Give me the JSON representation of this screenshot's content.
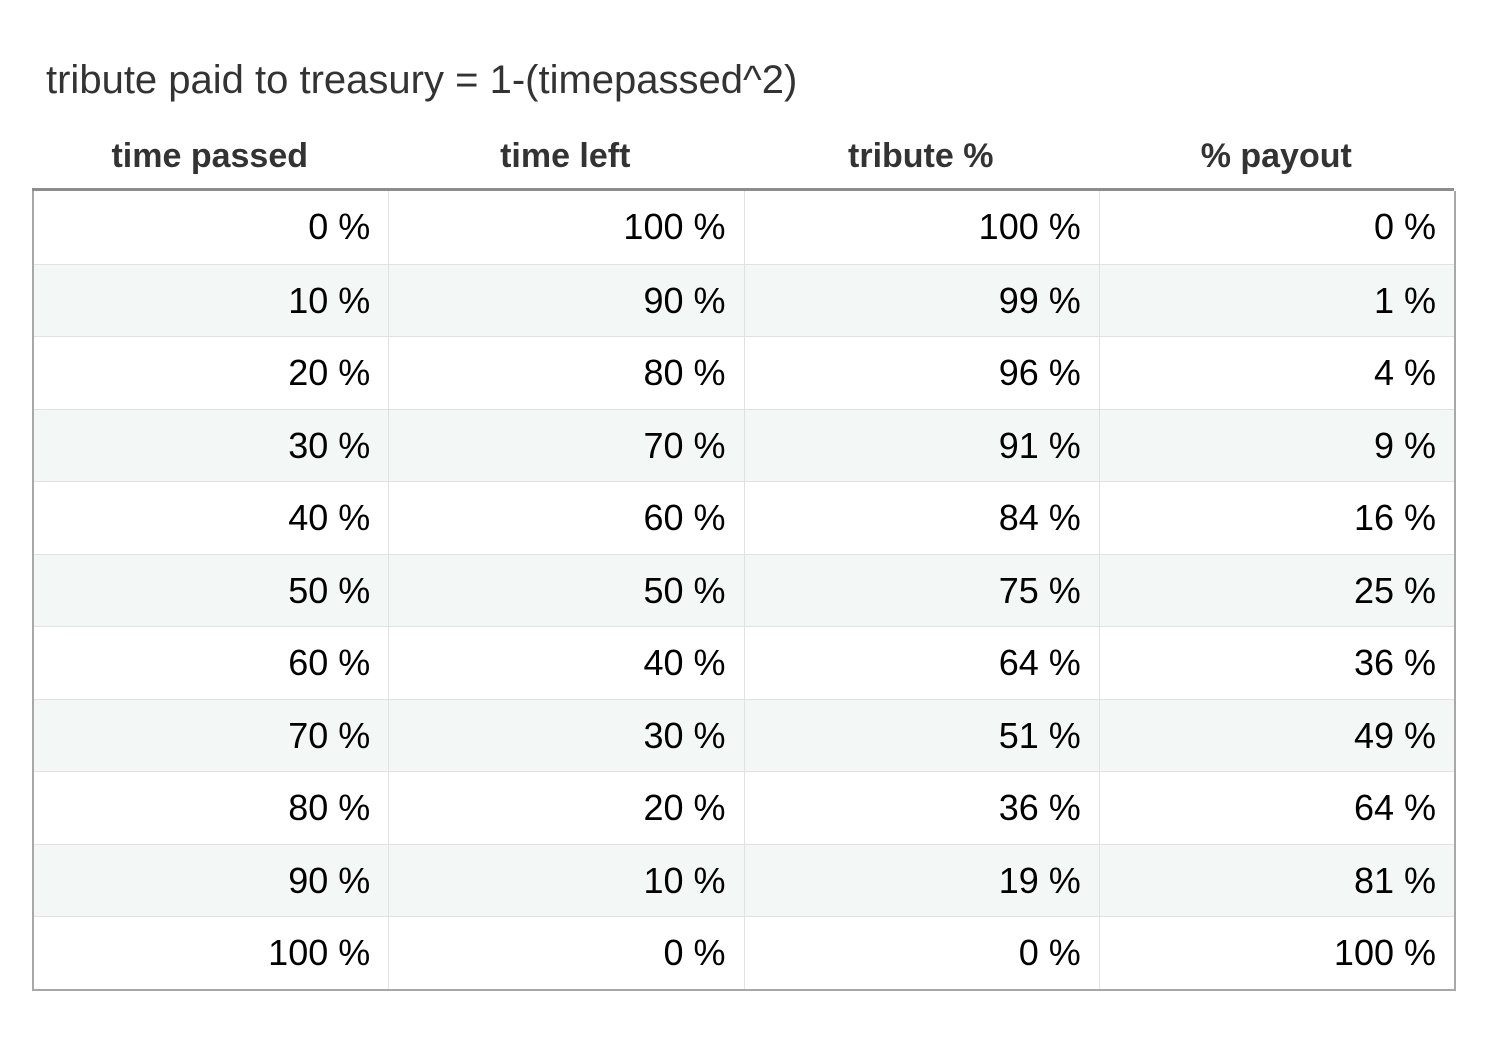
{
  "chart_data": {
    "type": "table",
    "title": "tribute paid to treasury = 1-(timepassed^2)",
    "columns": [
      "time passed",
      "time left",
      "tribute %",
      "% payout"
    ],
    "rows": [
      [
        "0 %",
        "100 %",
        "100 %",
        "0 %"
      ],
      [
        "10 %",
        "90 %",
        "99 %",
        "1 %"
      ],
      [
        "20 %",
        "80 %",
        "96 %",
        "4 %"
      ],
      [
        "30 %",
        "70 %",
        "91 %",
        "9 %"
      ],
      [
        "40 %",
        "60 %",
        "84 %",
        "16 %"
      ],
      [
        "50 %",
        "50 %",
        "75 %",
        "25 %"
      ],
      [
        "60 %",
        "40 %",
        "64 %",
        "36 %"
      ],
      [
        "70 %",
        "30 %",
        "51 %",
        "49 %"
      ],
      [
        "80 %",
        "20 %",
        "36 %",
        "64 %"
      ],
      [
        "90 %",
        "10 %",
        "19 %",
        "81 %"
      ],
      [
        "100 %",
        "0 %",
        "0 %",
        "100 %"
      ]
    ],
    "colors": {
      "alt_row_background": "#f3f7f6",
      "header_text": "#333333",
      "border": "#a8a8a8"
    }
  }
}
